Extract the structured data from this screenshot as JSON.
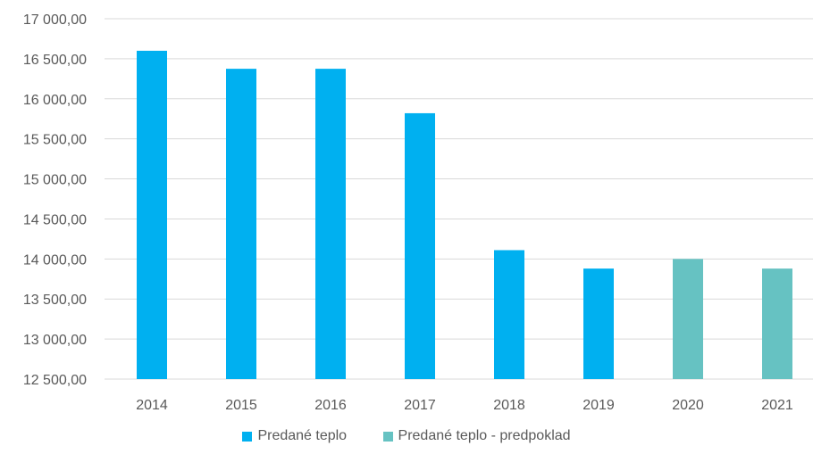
{
  "chart_data": {
    "type": "bar",
    "categories": [
      "2014",
      "2015",
      "2016",
      "2017",
      "2018",
      "2019",
      "2020",
      "2021"
    ],
    "series": [
      {
        "name": "Predané teplo",
        "color": "#00B0F0",
        "values": [
          16600,
          16375,
          16375,
          15820,
          14110,
          13880,
          null,
          null
        ]
      },
      {
        "name": "Predané teplo - predpoklad",
        "color": "#66C2C2",
        "values": [
          null,
          null,
          null,
          null,
          null,
          null,
          14000,
          13880
        ]
      }
    ],
    "y_ticks": [
      "12 500,00",
      "13 000,00",
      "13 500,00",
      "14 000,00",
      "14 500,00",
      "15 000,00",
      "15 500,00",
      "16 000,00",
      "16 500,00",
      "17 000,00"
    ],
    "ylim": [
      12500,
      17000
    ],
    "y_step": 500,
    "grid": true,
    "legend_position": "bottom"
  }
}
